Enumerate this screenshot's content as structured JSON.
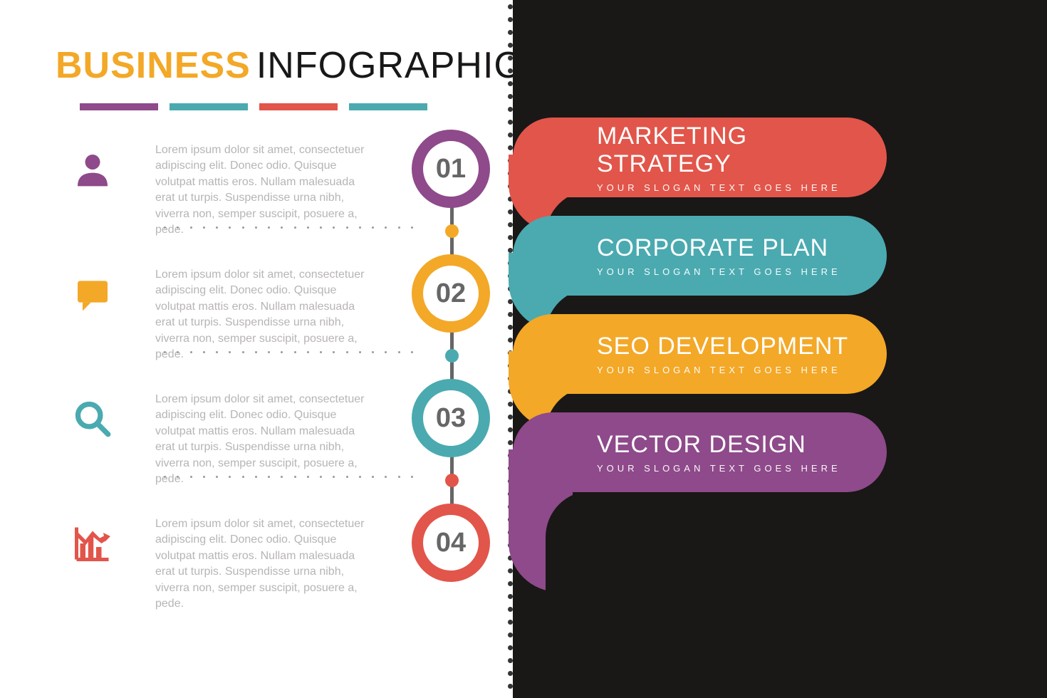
{
  "title": {
    "word1": "BUSINESS",
    "word2": "INFOGRAPHIC",
    "word1_color": "#f3a827",
    "word2_color": "#1a1717"
  },
  "underline_colors": [
    "#8e4a8a",
    "#4aaab0",
    "#e2554a",
    "#4aaab0"
  ],
  "text_color": "#b8b4b4",
  "dark_bg": "#1a1717",
  "light_bg": "#ffffff",
  "body_text": "Lorem ipsum dolor sit amet, consectetuer adipiscing elit. Donec odio. Quisque volutpat mattis eros. Nullam malesuada erat ut turpis. Suspendisse urna nibh, viverra non, semper suscipit, posuere a, pede.",
  "items": [
    {
      "num": "01",
      "color": "#8e4a8a",
      "icon": "person"
    },
    {
      "num": "02",
      "color": "#f3a827",
      "icon": "chat"
    },
    {
      "num": "03",
      "color": "#4aaab0",
      "icon": "search"
    },
    {
      "num": "04",
      "color": "#e2554a",
      "icon": "chart"
    }
  ],
  "timeline": {
    "line_color": "#666666",
    "inner_bg": "#ffffff",
    "num_color": "#666666",
    "circle_spacing": 175,
    "circle_diameter": 110,
    "ring_thickness": 16,
    "num_fontsize": 38
  },
  "tabs": [
    {
      "title": "MARKETING STRATEGY",
      "subtitle": "YOUR SLOGAN TEXT GOES HERE",
      "color": "#e2554a"
    },
    {
      "title": "CORPORATE PLAN",
      "subtitle": "YOUR SLOGAN TEXT GOES HERE",
      "color": "#4aaab0"
    },
    {
      "title": "SEO DEVELOPMENT",
      "subtitle": "YOUR SLOGAN TEXT GOES HERE",
      "color": "#f3a827"
    },
    {
      "title": "VECTOR DESIGN",
      "subtitle": "YOUR SLOGAN TEXT GOES HERE",
      "color": "#8e4a8a"
    }
  ],
  "tab_style": {
    "title_fontsize": 34,
    "subtitle_fontsize": 13,
    "title_color": "#ffffff",
    "height": 135,
    "radius": 56,
    "letter_spacing_sub": 5
  },
  "divider": {
    "dot_color": "#333333",
    "dot_size": 7,
    "spacing": 18
  }
}
